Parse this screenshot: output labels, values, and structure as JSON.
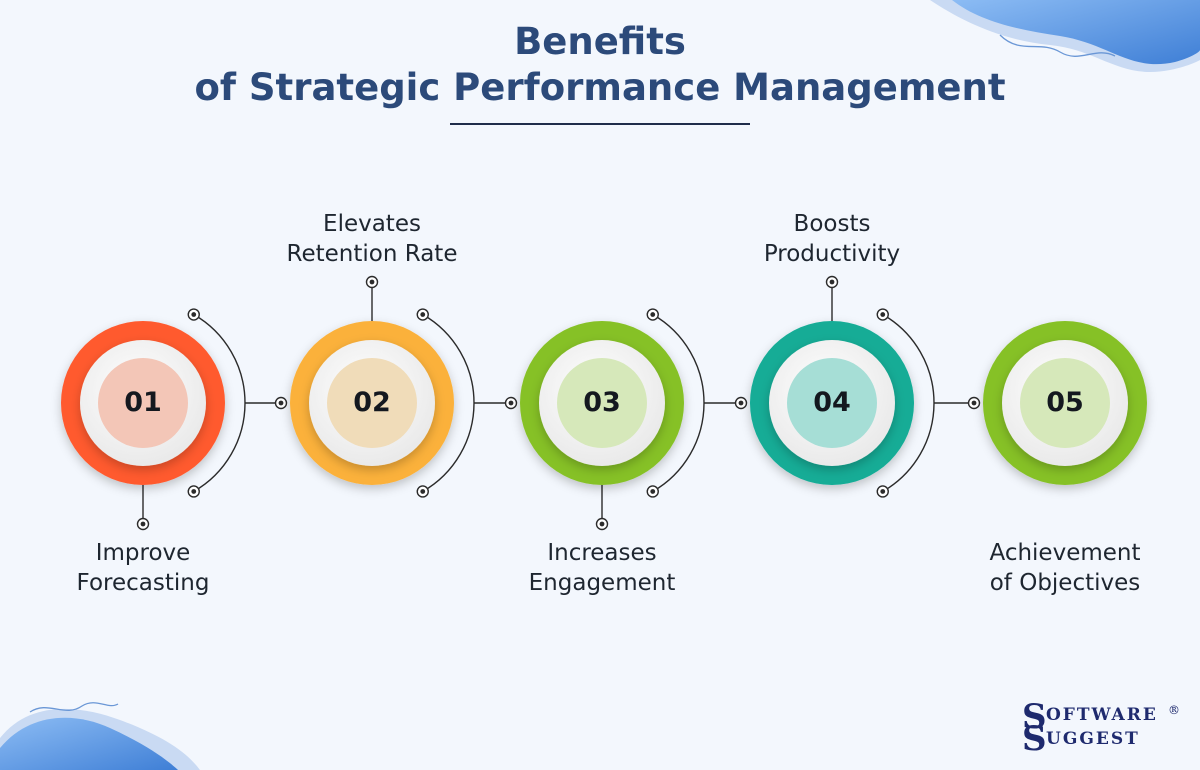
{
  "title": {
    "line1": "Benefits",
    "line2": "of Strategic Performance Management"
  },
  "steps": [
    {
      "number": "01",
      "label_lines": [
        "Improve",
        "Forecasting"
      ],
      "label_position": "below",
      "ring_color": "#ff5a2e",
      "inner_color": "#f3c6b7"
    },
    {
      "number": "02",
      "label_lines": [
        "Elevates",
        "Retention Rate"
      ],
      "label_position": "above",
      "ring_color": "#fbb13a",
      "inner_color": "#f0dcb9"
    },
    {
      "number": "03",
      "label_lines": [
        "Increases",
        "Engagement"
      ],
      "label_position": "below",
      "ring_color": "#86c127",
      "inner_color": "#d6e8ba"
    },
    {
      "number": "04",
      "label_lines": [
        "Boosts",
        "Productivity"
      ],
      "label_position": "above",
      "ring_color": "#12ac96",
      "inner_color": "#a6ded6"
    },
    {
      "number": "05",
      "label_lines": [
        "Achievement",
        "of Objectives"
      ],
      "label_position": "below",
      "ring_color": "#86c127",
      "inner_color": "#d6e8ba"
    }
  ],
  "logo": {
    "s1": "S",
    "line1": "OFTWARE",
    "registered": "®",
    "s2": "S",
    "line2": "UGGEST"
  },
  "colors": {
    "title": "#2c4a7a",
    "connector": "#2b2b2b",
    "background": "#f3f7fd",
    "blob": "#5f9de8"
  }
}
